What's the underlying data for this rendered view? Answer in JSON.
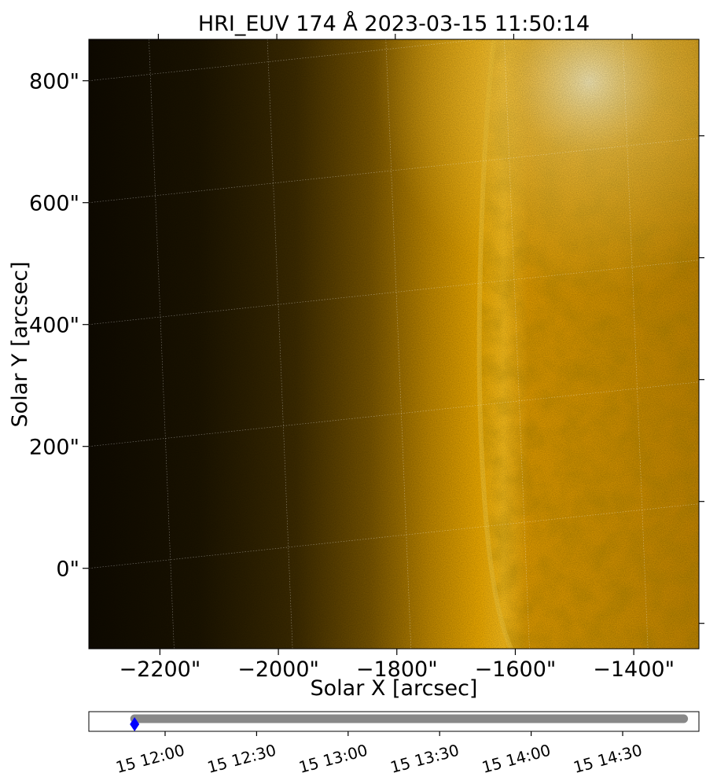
{
  "colors": {
    "sun_bright": "#ffd34a",
    "sun_mid": "#e8a400",
    "corona_dark": "#1a1200",
    "grid": "#ffffff",
    "timeline_bar": "#888888",
    "marker": "#0000ff"
  },
  "chart_data": [
    {
      "type": "heatmap",
      "title": "HRI_EUV 174 Å 2023-03-15 11:50:14",
      "xlabel": "Solar X [arcsec]",
      "ylabel": "Solar Y [arcsec]",
      "xlim": [
        -2320,
        -1290
      ],
      "ylim": [
        -132,
        868
      ],
      "x_ticks": [
        -2200,
        -2000,
        -1800,
        -1600,
        -1400
      ],
      "x_tick_labels": [
        "−2200\"",
        "−2000\"",
        "−1800\"",
        "−1600\"",
        "−1400\""
      ],
      "y_ticks": [
        0,
        200,
        400,
        600,
        800
      ],
      "y_tick_labels": [
        "0\"",
        "200\"",
        "400\"",
        "600\"",
        "800\""
      ],
      "grid": "on",
      "limb_x_approx": [
        -1690,
        -1610
      ]
    },
    {
      "type": "line",
      "title": "",
      "x_start": "2023-03-15 11:50",
      "x_end": "2023-03-15 14:50",
      "xlim": [
        "2023-03-15 11:35",
        "2023-03-15 14:55"
      ],
      "marker_time": "2023-03-15 11:50",
      "x_tick_labels": [
        "15 12:00",
        "15 12:30",
        "15 13:00",
        "15 13:30",
        "15 14:00",
        "15 14:30"
      ]
    }
  ]
}
